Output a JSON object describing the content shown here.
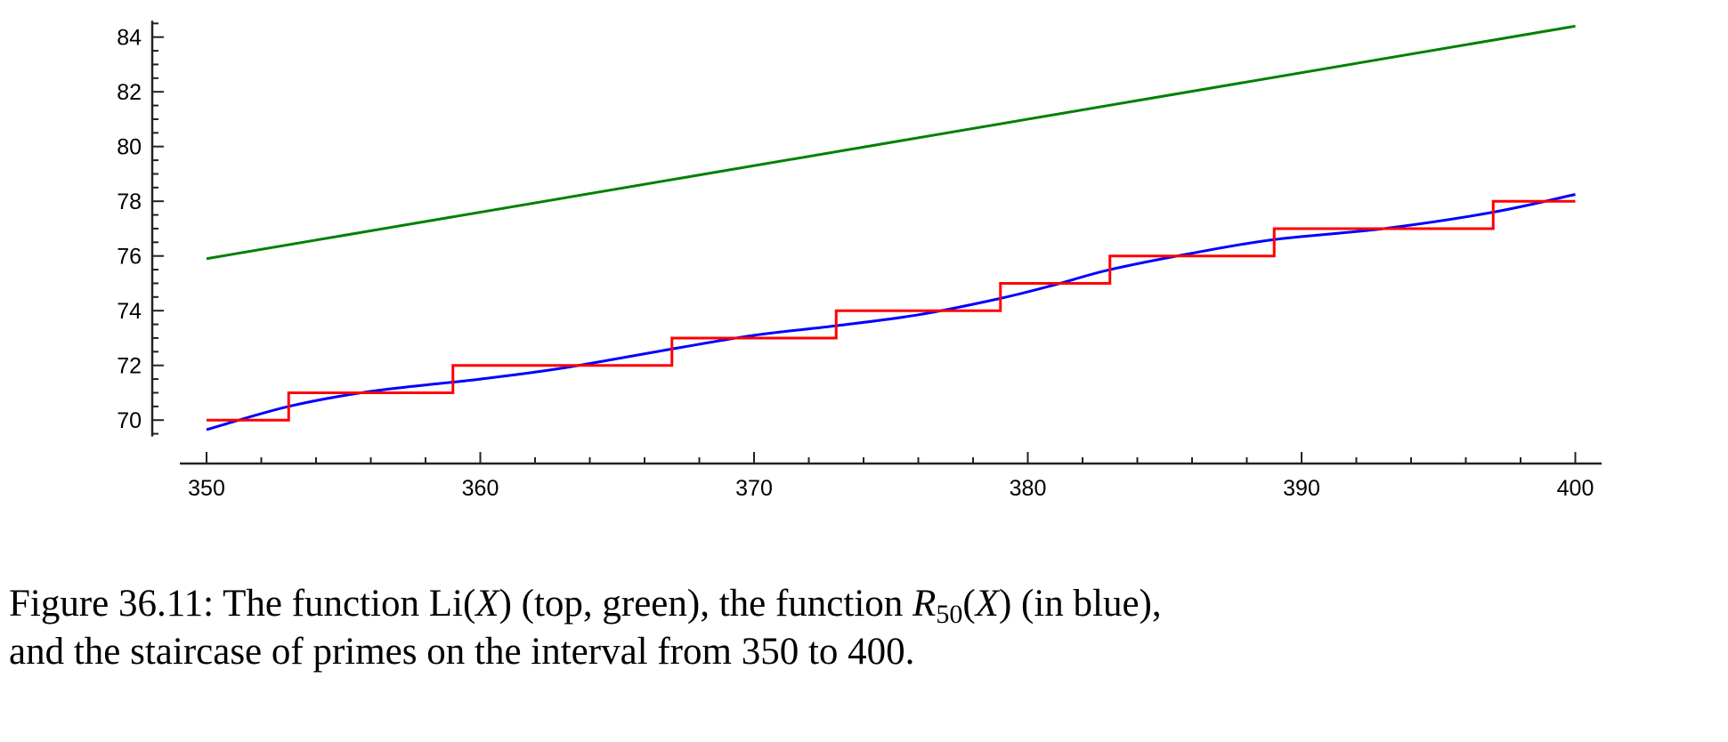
{
  "chart_data": {
    "type": "line",
    "title": "",
    "xlabel": "",
    "ylabel": "",
    "xlim": [
      349,
      401
    ],
    "ylim": [
      69.4,
      84.6
    ],
    "x_ticks": [
      350,
      360,
      370,
      380,
      390,
      400
    ],
    "y_ticks": [
      70,
      72,
      74,
      76,
      78,
      80,
      82,
      84
    ],
    "x_minor_step": 2,
    "y_minor_step": 0.5,
    "grid": false,
    "series": [
      {
        "key": "li",
        "color": "#008000",
        "style": "line",
        "x": [
          350,
          400
        ],
        "y": [
          75.9,
          84.4
        ]
      },
      {
        "key": "r50",
        "color": "#0000ff",
        "style": "smooth",
        "x": [
          350,
          353,
          356,
          360,
          363,
          367,
          370,
          373,
          376,
          379,
          381,
          383,
          386,
          389,
          393,
          397,
          400
        ],
        "y": [
          69.65,
          70.5,
          71.05,
          71.5,
          71.9,
          72.6,
          73.1,
          73.45,
          73.85,
          74.45,
          74.95,
          75.5,
          76.1,
          76.6,
          77.0,
          77.6,
          78.25
        ]
      },
      {
        "key": "prime-staircase",
        "color": "#ff0000",
        "style": "step",
        "x": [
          350,
          353,
          359,
          367,
          373,
          379,
          383,
          389,
          397,
          400
        ],
        "y": [
          70,
          71,
          72,
          73,
          74,
          75,
          76,
          77,
          78,
          78
        ]
      }
    ]
  },
  "caption": {
    "prefix": "Figure 36.11: The function Li(",
    "var1": "X",
    "part2": ") (top, green), the function ",
    "var2": "R",
    "sub": "50",
    "part3": "(",
    "var3": "X",
    "part4": ") (in blue),",
    "line2": "and the staircase of primes on the interval from 350 to 400."
  }
}
